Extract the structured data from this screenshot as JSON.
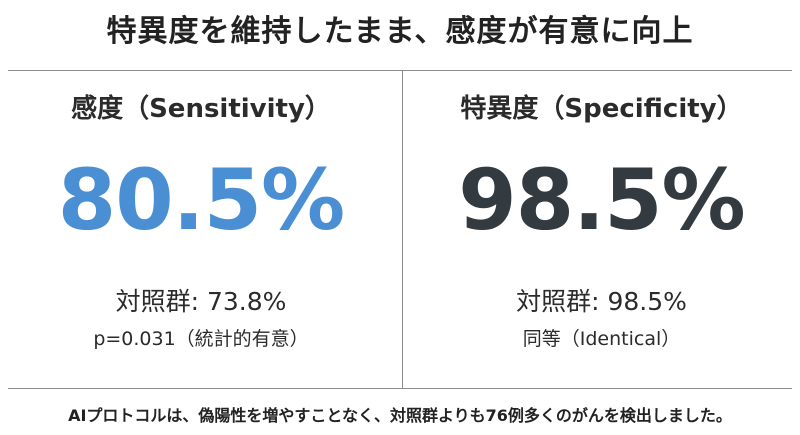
{
  "headline": "特異度を維持したまま、感度が有意に向上",
  "sensitivity": {
    "title": "感度（Sensitivity）",
    "value": "80.5%",
    "comparison": "対照群: 73.8%",
    "note": "p=0.031（統計的有意）"
  },
  "specificity": {
    "title": "特異度（Specificity）",
    "value": "98.5%",
    "comparison": "対照群: 98.5%",
    "note": "同等（Identical）"
  },
  "footer": "AIプロトコルは、偽陽性を増やすことなく、対照群よりも76例多くのがんを検出しました。",
  "colors": {
    "sensitivity_accent": "#4a8fd4",
    "specificity_accent": "#333a40",
    "divider": "#8c8c8c"
  }
}
